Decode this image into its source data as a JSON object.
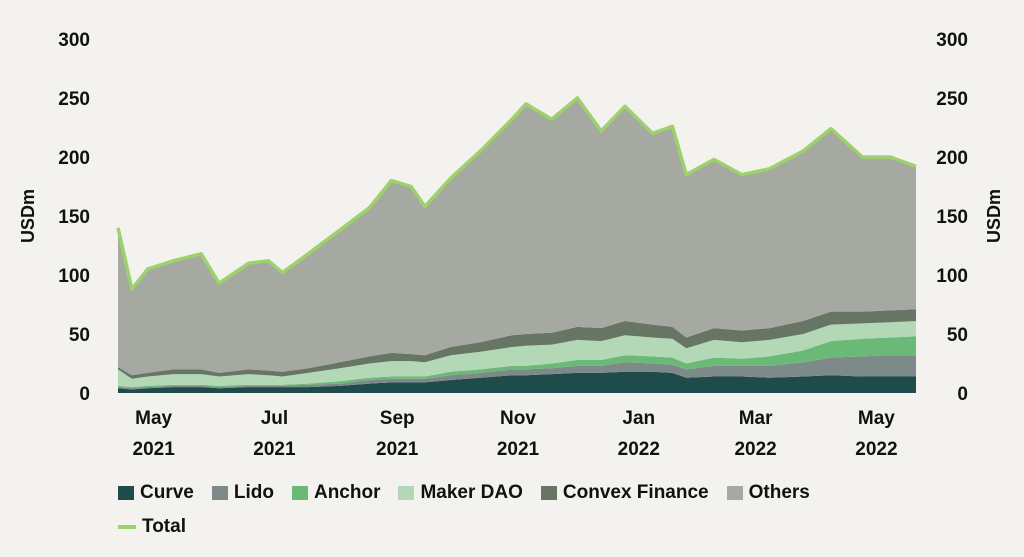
{
  "chart_data": {
    "type": "area",
    "stacked": true,
    "title": "",
    "ylabel": "USDm",
    "ylabel_right": "USDm",
    "ylim": [
      0,
      300
    ],
    "yticks": [
      0,
      50,
      100,
      150,
      200,
      250,
      300
    ],
    "xticks": [
      {
        "date": "2021-05-08",
        "line1": "May",
        "line2": "2021"
      },
      {
        "date": "2021-07-08",
        "line1": "Jul",
        "line2": "2021"
      },
      {
        "date": "2021-09-08",
        "line1": "Sep",
        "line2": "2021"
      },
      {
        "date": "2021-11-08",
        "line1": "Nov",
        "line2": "2021"
      },
      {
        "date": "2022-01-08",
        "line1": "Jan",
        "line2": "2022"
      },
      {
        "date": "2022-03-08",
        "line1": "Mar",
        "line2": "2022"
      },
      {
        "date": "2022-05-08",
        "line1": "May",
        "line2": "2022"
      }
    ],
    "legend_position": "bottom",
    "x": [
      "2021-04-20",
      "2021-04-27",
      "2021-05-05",
      "2021-05-18",
      "2021-06-01",
      "2021-06-10",
      "2021-06-25",
      "2021-07-05",
      "2021-07-12",
      "2021-07-25",
      "2021-08-10",
      "2021-08-25",
      "2021-09-05",
      "2021-09-15",
      "2021-09-22",
      "2021-10-05",
      "2021-10-20",
      "2021-11-05",
      "2021-11-12",
      "2021-11-25",
      "2021-12-08",
      "2021-12-20",
      "2022-01-01",
      "2022-01-15",
      "2022-01-25",
      "2022-02-01",
      "2022-02-15",
      "2022-03-01",
      "2022-03-15",
      "2022-04-01",
      "2022-04-15",
      "2022-05-01",
      "2022-05-15",
      "2022-05-28"
    ],
    "series": [
      {
        "name": "Curve",
        "color": "#1f4b4a",
        "values": [
          4,
          3,
          4,
          5,
          5,
          4,
          5,
          5,
          5,
          5,
          6,
          8,
          9,
          9,
          9,
          11,
          13,
          15,
          15,
          16,
          17,
          17,
          18,
          18,
          17,
          13,
          14,
          14,
          13,
          14,
          15,
          14,
          14,
          14
        ]
      },
      {
        "name": "Lido",
        "color": "#7e8a8a",
        "values": [
          1,
          1,
          1,
          1,
          1,
          1,
          1,
          1,
          1,
          2,
          2,
          3,
          3,
          3,
          3,
          4,
          4,
          5,
          5,
          5,
          6,
          6,
          8,
          7,
          7,
          7,
          9,
          9,
          10,
          12,
          15,
          17,
          18,
          18
        ]
      },
      {
        "name": "Anchor",
        "color": "#6bb977",
        "values": [
          1,
          1,
          1,
          1,
          1,
          1,
          1,
          1,
          1,
          1,
          2,
          2,
          2,
          2,
          2,
          3,
          3,
          3,
          3,
          4,
          5,
          5,
          6,
          6,
          6,
          5,
          7,
          6,
          8,
          10,
          14,
          15,
          15,
          16
        ]
      },
      {
        "name": "Maker DAO",
        "color": "#b3d8b5",
        "values": [
          14,
          7,
          8,
          9,
          9,
          8,
          9,
          8,
          7,
          9,
          11,
          12,
          13,
          13,
          12,
          14,
          15,
          16,
          17,
          16,
          17,
          16,
          17,
          16,
          16,
          13,
          15,
          14,
          14,
          14,
          14,
          13,
          13,
          13
        ]
      },
      {
        "name": "Convex Finance",
        "color": "#667564",
        "values": [
          2,
          3,
          3,
          4,
          4,
          3,
          4,
          4,
          4,
          4,
          5,
          6,
          7,
          6,
          6,
          7,
          8,
          10,
          10,
          10,
          11,
          11,
          12,
          11,
          10,
          9,
          10,
          10,
          10,
          11,
          11,
          10,
          10,
          10
        ]
      },
      {
        "name": "Others",
        "color": "#a6a9a1",
        "values": [
          118,
          73,
          88,
          92,
          98,
          76,
          90,
          93,
          84,
          97,
          112,
          126,
          146,
          142,
          126,
          143,
          162,
          183,
          195,
          181,
          194,
          167,
          182,
          162,
          170,
          138,
          143,
          132,
          135,
          144,
          155,
          131,
          130,
          121
        ]
      }
    ],
    "total": {
      "name": "Total",
      "color": "#9dd16b",
      "values": [
        140,
        88,
        105,
        112,
        118,
        93,
        110,
        112,
        102,
        118,
        138,
        157,
        180,
        175,
        158,
        182,
        205,
        232,
        245,
        232,
        250,
        222,
        243,
        220,
        226,
        185,
        198,
        185,
        190,
        205,
        224,
        200,
        200,
        192
      ]
    }
  }
}
